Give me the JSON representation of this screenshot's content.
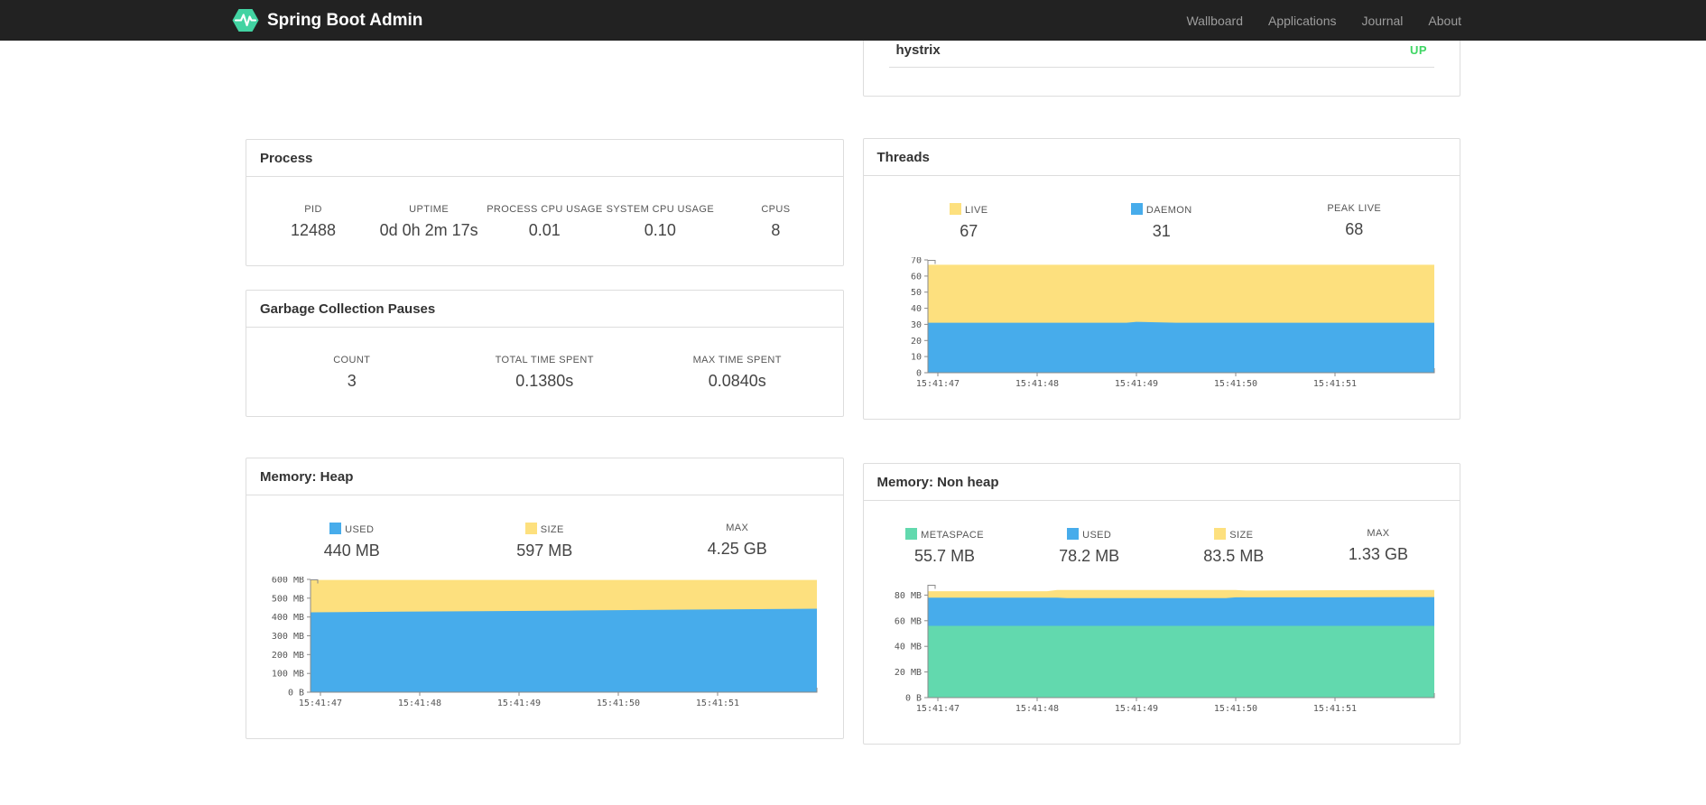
{
  "navbar": {
    "brand": "Spring Boot Admin",
    "links": [
      {
        "label": "Wallboard"
      },
      {
        "label": "Applications"
      },
      {
        "label": "Journal"
      },
      {
        "label": "About"
      }
    ]
  },
  "applications_panel": {
    "rows": [
      {
        "name": "hystrix",
        "status": "UP"
      }
    ],
    "status_up_color": "#3fd664"
  },
  "panels": {
    "process": {
      "title": "Process",
      "stats": [
        {
          "label": "PID",
          "value": "12488"
        },
        {
          "label": "UPTIME",
          "value": "0d 0h 2m 17s"
        },
        {
          "label": "PROCESS CPU USAGE",
          "value": "0.01"
        },
        {
          "label": "SYSTEM CPU USAGE",
          "value": "0.10"
        },
        {
          "label": "CPUS",
          "value": "8"
        }
      ]
    },
    "gc": {
      "title": "Garbage Collection Pauses",
      "stats": [
        {
          "label": "COUNT",
          "value": "3"
        },
        {
          "label": "TOTAL TIME SPENT",
          "value": "0.1380s"
        },
        {
          "label": "MAX TIME SPENT",
          "value": "0.0840s"
        }
      ]
    },
    "threads": {
      "title": "Threads",
      "stats": [
        {
          "label": "LIVE",
          "value": "67",
          "swatch": "#fde07e"
        },
        {
          "label": "DAEMON",
          "value": "31",
          "swatch": "#47aceb"
        },
        {
          "label": "PEAK LIVE",
          "value": "68",
          "swatch": null
        }
      ]
    },
    "heap": {
      "title": "Memory: Heap",
      "stats": [
        {
          "label": "USED",
          "value": "440 MB",
          "swatch": "#47aceb"
        },
        {
          "label": "SIZE",
          "value": "597 MB",
          "swatch": "#fde07e"
        },
        {
          "label": "MAX",
          "value": "4.25 GB",
          "swatch": null
        }
      ]
    },
    "nonheap": {
      "title": "Memory: Non heap",
      "stats": [
        {
          "label": "METASPACE",
          "value": "55.7 MB",
          "swatch": "#62d9ae"
        },
        {
          "label": "USED",
          "value": "78.2 MB",
          "swatch": "#47aceb"
        },
        {
          "label": "SIZE",
          "value": "83.5 MB",
          "swatch": "#fde07e"
        },
        {
          "label": "MAX",
          "value": "1.33 GB",
          "swatch": null
        }
      ]
    }
  },
  "chart_data": [
    {
      "id": "threads-chart",
      "type": "area",
      "title": "Threads",
      "x_range": [
        46.9,
        52.0
      ],
      "x_ticks": [
        {
          "t": 47,
          "label": "15:41:47"
        },
        {
          "t": 48,
          "label": "15:41:48"
        },
        {
          "t": 49,
          "label": "15:41:49"
        },
        {
          "t": 50,
          "label": "15:41:50"
        },
        {
          "t": 51,
          "label": "15:41:51"
        }
      ],
      "ylim": [
        0,
        70
      ],
      "y_ticks": [
        {
          "v": 0,
          "label": "0"
        },
        {
          "v": 10,
          "label": "10"
        },
        {
          "v": 20,
          "label": "20"
        },
        {
          "v": 30,
          "label": "30"
        },
        {
          "v": 40,
          "label": "40"
        },
        {
          "v": 50,
          "label": "50"
        },
        {
          "v": 60,
          "label": "60"
        },
        {
          "v": 70,
          "label": "70"
        }
      ],
      "series": [
        {
          "name": "LIVE",
          "color": "#fde07e",
          "points": [
            [
              46.9,
              67
            ],
            [
              48,
              67
            ],
            [
              49,
              67
            ],
            [
              50,
              67
            ],
            [
              51,
              67
            ],
            [
              52,
              67
            ]
          ]
        },
        {
          "name": "DAEMON",
          "color": "#47aceb",
          "points": [
            [
              46.9,
              31
            ],
            [
              48,
              31
            ],
            [
              48.9,
              31
            ],
            [
              49,
              31.6
            ],
            [
              49.4,
              31
            ],
            [
              50,
              31
            ],
            [
              51,
              31
            ],
            [
              52,
              31
            ]
          ]
        }
      ]
    },
    {
      "id": "heap-chart",
      "type": "area",
      "title": "Memory: Heap",
      "x_range": [
        46.9,
        52.0
      ],
      "x_ticks": [
        {
          "t": 47,
          "label": "15:41:47"
        },
        {
          "t": 48,
          "label": "15:41:48"
        },
        {
          "t": 49,
          "label": "15:41:49"
        },
        {
          "t": 50,
          "label": "15:41:50"
        },
        {
          "t": 51,
          "label": "15:41:51"
        }
      ],
      "ylim": [
        0,
        600
      ],
      "y_ticks": [
        {
          "v": 0,
          "label": "0 B"
        },
        {
          "v": 100,
          "label": "100 MB"
        },
        {
          "v": 200,
          "label": "200 MB"
        },
        {
          "v": 300,
          "label": "300 MB"
        },
        {
          "v": 400,
          "label": "400 MB"
        },
        {
          "v": 500,
          "label": "500 MB"
        },
        {
          "v": 600,
          "label": "600 MB"
        }
      ],
      "series": [
        {
          "name": "SIZE",
          "color": "#fde07e",
          "points": [
            [
              46.9,
              597
            ],
            [
              48,
              597
            ],
            [
              49,
              597
            ],
            [
              50,
              597
            ],
            [
              51,
              597
            ],
            [
              52,
              597
            ]
          ]
        },
        {
          "name": "USED",
          "color": "#47aceb",
          "points": [
            [
              46.9,
              425
            ],
            [
              47.8,
              428
            ],
            [
              48.6,
              431
            ],
            [
              49.5,
              434
            ],
            [
              50.4,
              438
            ],
            [
              51.2,
              441
            ],
            [
              52,
              444
            ]
          ]
        }
      ]
    },
    {
      "id": "nonheap-chart",
      "type": "area",
      "title": "Memory: Non heap",
      "x_range": [
        46.9,
        52.0
      ],
      "x_ticks": [
        {
          "t": 47,
          "label": "15:41:47"
        },
        {
          "t": 48,
          "label": "15:41:48"
        },
        {
          "t": 49,
          "label": "15:41:49"
        },
        {
          "t": 50,
          "label": "15:41:50"
        },
        {
          "t": 51,
          "label": "15:41:51"
        }
      ],
      "ylim": [
        0,
        88
      ],
      "y_ticks": [
        {
          "v": 0,
          "label": "0 B"
        },
        {
          "v": 20,
          "label": "20 MB"
        },
        {
          "v": 40,
          "label": "40 MB"
        },
        {
          "v": 60,
          "label": "60 MB"
        },
        {
          "v": 80,
          "label": "80 MB"
        }
      ],
      "series": [
        {
          "name": "SIZE",
          "color": "#fde07e",
          "points": [
            [
              46.9,
              83
            ],
            [
              48.1,
              83
            ],
            [
              48.2,
              84
            ],
            [
              50,
              84
            ],
            [
              50.1,
              83.5
            ],
            [
              51,
              83.8
            ],
            [
              52,
              84
            ]
          ]
        },
        {
          "name": "USED",
          "color": "#47aceb",
          "points": [
            [
              46.9,
              78
            ],
            [
              48.2,
              78
            ],
            [
              48.3,
              77.6
            ],
            [
              49.9,
              77.6
            ],
            [
              50,
              78.2
            ],
            [
              51,
              78.2
            ],
            [
              52,
              78.4
            ]
          ]
        },
        {
          "name": "METASPACE",
          "color": "#62d9ae",
          "points": [
            [
              46.9,
              56
            ],
            [
              48,
              56
            ],
            [
              49,
              56
            ],
            [
              50,
              56
            ],
            [
              51,
              56
            ],
            [
              52,
              56
            ]
          ]
        }
      ]
    }
  ]
}
